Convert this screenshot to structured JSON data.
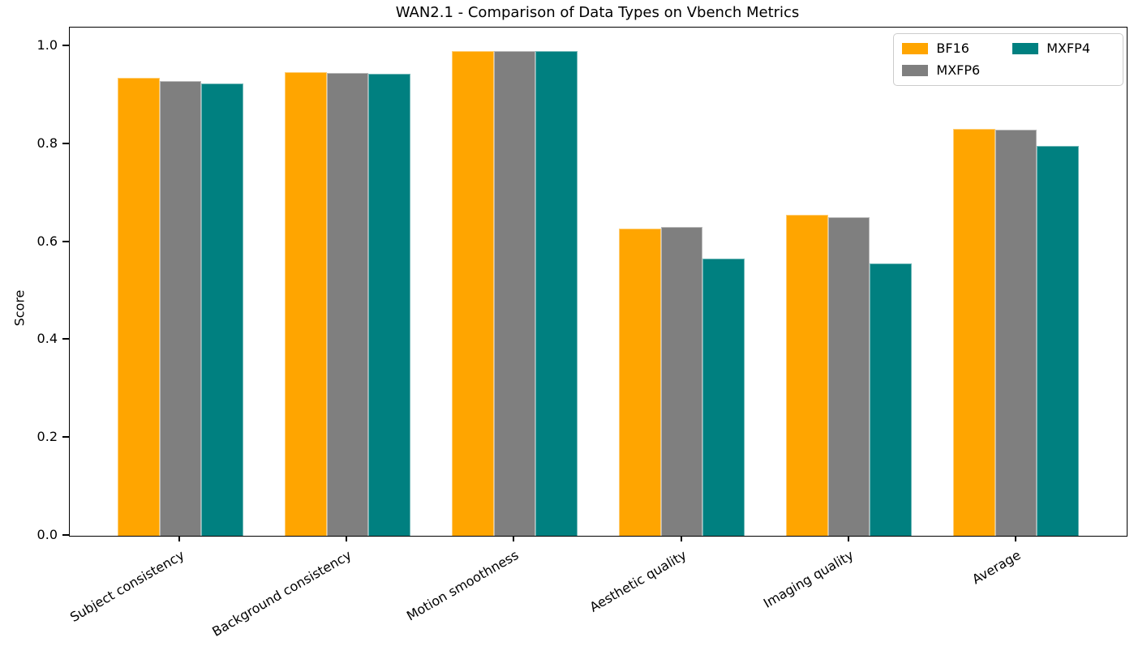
{
  "chart_data": {
    "type": "bar",
    "title": "WAN2.1 - Comparison of Data Types on Vbench Metrics",
    "xlabel": "",
    "ylabel": "Score",
    "categories": [
      "Subject consistency",
      "Background consistency",
      "Motion smoothness",
      "Aesthetic quality",
      "Imaging quality",
      "Average"
    ],
    "series": [
      {
        "name": "BF16",
        "color": "#FFA500",
        "values": [
          0.936,
          0.947,
          0.99,
          0.627,
          0.655,
          0.831
        ]
      },
      {
        "name": "MXFP6",
        "color": "#7F7F7F",
        "values": [
          0.929,
          0.945,
          0.99,
          0.631,
          0.65,
          0.829
        ]
      },
      {
        "name": "MXFP4",
        "color": "#008080",
        "values": [
          0.923,
          0.943,
          0.99,
          0.567,
          0.557,
          0.796
        ]
      }
    ],
    "ylim": [
      0,
      1.038
    ],
    "yticks": [
      0.0,
      0.2,
      0.4,
      0.6,
      0.8,
      1.0
    ],
    "ytick_labels": [
      "0.0",
      "0.2",
      "0.4",
      "0.6",
      "0.8",
      "1.0"
    ],
    "xlim": [
      -0.6625,
      5.6625
    ],
    "bar_width_units": 0.25,
    "x_label_rotation_deg": 30,
    "grid": false,
    "legend_position": "upper right",
    "legend_columns": 2,
    "axis_color": "#000000",
    "legend_border_color": "#cccccc"
  }
}
